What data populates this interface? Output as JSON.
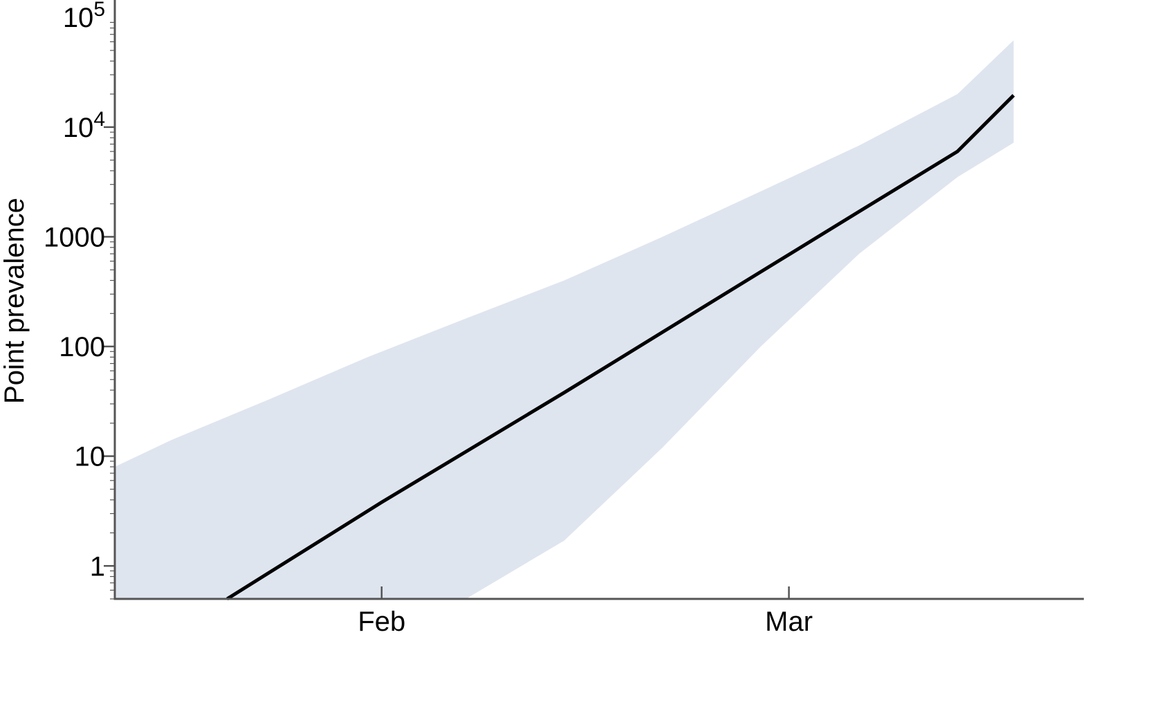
{
  "chart_data": {
    "type": "line",
    "ylabel": "Point prevalence",
    "xlabel": "",
    "y_scale": "log",
    "ylim": [
      0.5,
      140000
    ],
    "xlim": [
      "2020-01-13",
      "2020-03-22"
    ],
    "grid": false,
    "x_ticks": [
      {
        "date": "2020-02-01",
        "label": "Feb"
      },
      {
        "date": "2020-03-01",
        "label": "Mar"
      }
    ],
    "y_ticks": [
      {
        "value": 1,
        "label": "1"
      },
      {
        "value": 10,
        "label": "10"
      },
      {
        "value": 100,
        "label": "100"
      },
      {
        "value": 1000,
        "label": "1000"
      },
      {
        "value": 10000,
        "base": "10",
        "exp": "4"
      },
      {
        "value": 100000,
        "base": "10",
        "exp": "5"
      }
    ],
    "colors": {
      "band": "#dfe5ef",
      "line": "#000000",
      "axis": "#555555"
    },
    "band": {
      "x": [
        "2020-01-13",
        "2020-01-17",
        "2020-01-24",
        "2020-01-31",
        "2020-02-07",
        "2020-02-14",
        "2020-02-21",
        "2020-02-28",
        "2020-03-06",
        "2020-03-13",
        "2020-03-17"
      ],
      "upper": [
        8,
        14,
        33,
        80,
        180,
        400,
        1000,
        2600,
        6800,
        20000,
        62000
      ],
      "lower": [
        0.5,
        0.5,
        0.5,
        0.5,
        0.5,
        1.7,
        12,
        100,
        700,
        3500,
        7200
      ]
    },
    "series": [
      {
        "x": [
          "2020-01-21",
          "2020-02-01",
          "2020-02-07",
          "2020-02-14",
          "2020-02-21",
          "2020-02-28",
          "2020-03-06",
          "2020-03-13",
          "2020-03-17"
        ],
        "values": [
          0.5,
          3.8,
          11,
          38,
          135,
          480,
          1700,
          6000,
          19500
        ]
      }
    ]
  }
}
